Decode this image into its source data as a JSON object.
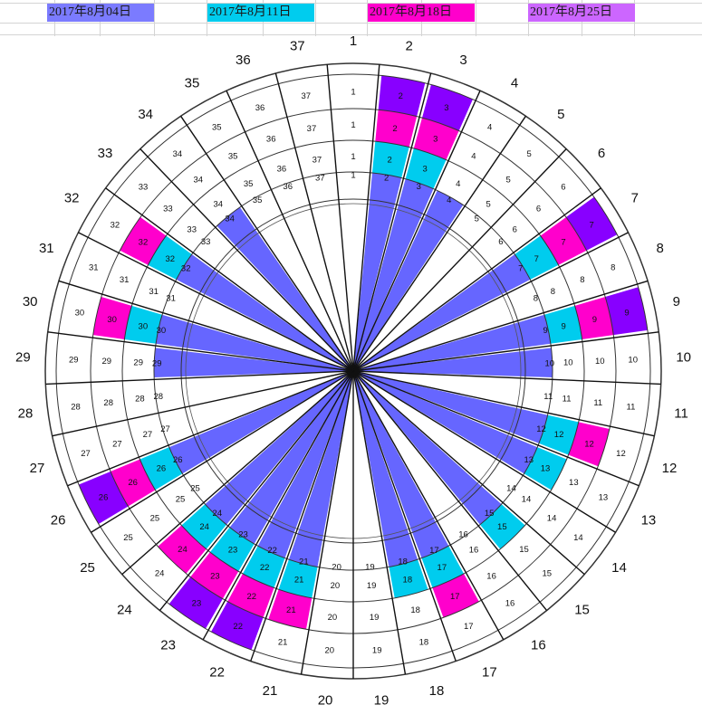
{
  "legend": [
    {
      "label": "2017年8月04日",
      "color": "#7b7bff"
    },
    {
      "label": "2017年8月11日",
      "color": "#00ccee"
    },
    {
      "label": "2017年8月18日",
      "color": "#ff00cc"
    },
    {
      "label": "2017年8月25日",
      "color": "#cc66ff"
    }
  ],
  "chart_data": {
    "type": "radial-grid",
    "sectors": [
      "1",
      "2",
      "3",
      "4",
      "5",
      "6",
      "7",
      "8",
      "9",
      "10",
      "11",
      "12",
      "13",
      "14",
      "15",
      "16",
      "17",
      "18",
      "19",
      "20",
      "21",
      "22",
      "23",
      "24",
      "25",
      "26",
      "27",
      "28",
      "29",
      "30",
      "31",
      "32",
      "33",
      "34",
      "35",
      "36",
      "37"
    ],
    "ring_colors": {
      "inner": "#6666ff",
      "ring2": "#00ccee",
      "ring3": "#ff00cc",
      "outer": "#8800ff"
    },
    "filled": [
      {
        "sector": 2,
        "rings": 4
      },
      {
        "sector": 3,
        "rings": 4
      },
      {
        "sector": 4,
        "rings": 1
      },
      {
        "sector": 7,
        "rings": 4
      },
      {
        "sector": 9,
        "rings": 4
      },
      {
        "sector": 10,
        "rings": 1
      },
      {
        "sector": 12,
        "rings": 3
      },
      {
        "sector": 13,
        "rings": 2
      },
      {
        "sector": 15,
        "rings": 2
      },
      {
        "sector": 17,
        "rings": 3
      },
      {
        "sector": 18,
        "rings": 2
      },
      {
        "sector": 21,
        "rings": 3
      },
      {
        "sector": 22,
        "rings": 4
      },
      {
        "sector": 23,
        "rings": 4
      },
      {
        "sector": 24,
        "rings": 3
      },
      {
        "sector": 26,
        "rings": 4
      },
      {
        "sector": 29,
        "rings": 1
      },
      {
        "sector": 30,
        "rings": 3
      },
      {
        "sector": 32,
        "rings": 3
      },
      {
        "sector": 34,
        "rings": 1
      }
    ]
  }
}
